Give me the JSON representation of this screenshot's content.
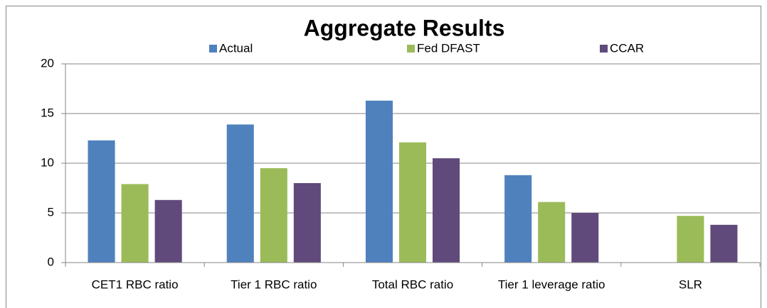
{
  "chart_data": {
    "type": "bar",
    "title": "Aggregate Results",
    "categories": [
      "CET1 RBC ratio",
      "Tier 1 RBC ratio",
      "Total RBC ratio",
      "Tier 1 leverage ratio",
      "SLR"
    ],
    "series": [
      {
        "name": "Actual",
        "color": "#4f81bd",
        "values": [
          12.3,
          13.9,
          16.3,
          8.8,
          null
        ]
      },
      {
        "name": "Fed DFAST",
        "color": "#9bbb59",
        "values": [
          7.9,
          9.5,
          12.1,
          6.1,
          4.7
        ]
      },
      {
        "name": "CCAR",
        "color": "#604a7b",
        "values": [
          6.3,
          8.0,
          10.5,
          5.0,
          3.8
        ]
      }
    ],
    "ylim": [
      0,
      20
    ],
    "yticks": [
      0,
      5,
      10,
      15,
      20
    ],
    "grid": true
  }
}
